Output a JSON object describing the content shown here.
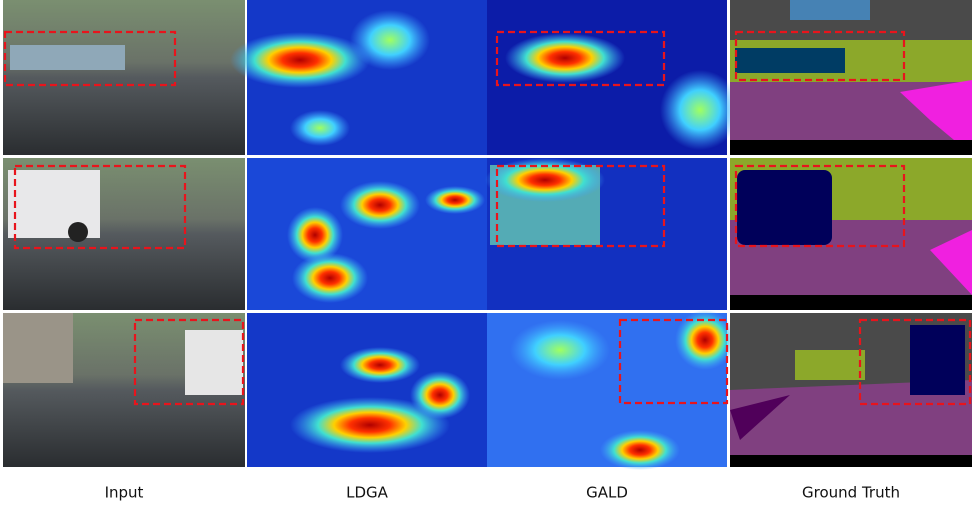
{
  "figure": {
    "column_labels": [
      "Input",
      "LDGA",
      "GALD",
      "Ground Truth"
    ]
  }
}
